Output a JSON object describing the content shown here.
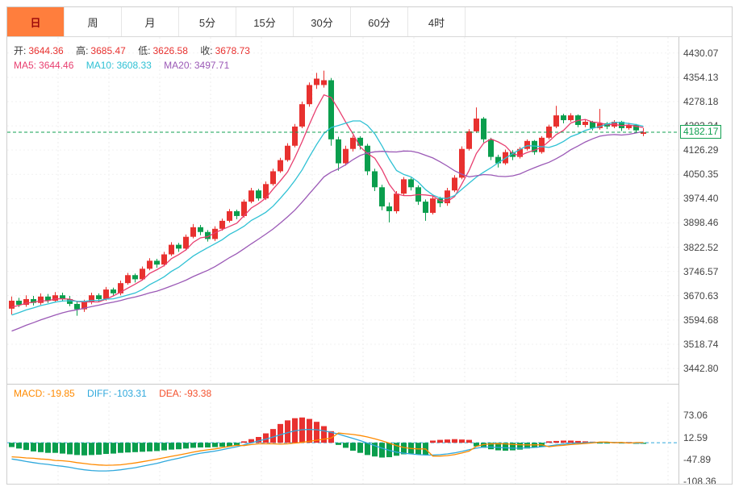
{
  "tabs": [
    {
      "label": "日",
      "active": true
    },
    {
      "label": "周",
      "active": false
    },
    {
      "label": "月",
      "active": false
    },
    {
      "label": "5分",
      "active": false
    },
    {
      "label": "15分",
      "active": false
    },
    {
      "label": "30分",
      "active": false
    },
    {
      "label": "60分",
      "active": false
    },
    {
      "label": "4时",
      "active": false
    }
  ],
  "ohlc_bar": {
    "open_label": "开:",
    "open": "3644.36",
    "high_label": "高:",
    "high": "3685.47",
    "low_label": "低:",
    "low": "3626.58",
    "close_label": "收:",
    "close": "3678.73"
  },
  "ma_bar": {
    "ma5_label": "MA5:",
    "ma5": "3644.46",
    "ma10_label": "MA10:",
    "ma10": "3608.33",
    "ma20_label": "MA20:",
    "ma20": "3497.71"
  },
  "macd_bar": {
    "macd_label": "MACD:",
    "macd": "-19.85",
    "diff_label": "DIFF:",
    "diff": "-103.31",
    "dea_label": "DEA:",
    "dea": "-93.38"
  },
  "price_tag": "4182.17",
  "colors": {
    "up": "#e8312f",
    "down": "#0a9e4d",
    "ma5": "#e83e6f",
    "ma10": "#2fc1d4",
    "ma20": "#9b59b6",
    "price_line": "#10a050",
    "macd_text": "#ff8a00",
    "diff": "#2fa8dc",
    "dea_text": "#f4502c",
    "dea_line": "#ff8a00",
    "tab_active_bg": "#ff7e3d",
    "tab_active_fg": "#9e0b0b",
    "grid": "#ececec"
  },
  "chart_data": [
    {
      "type": "candlestick",
      "name": "price",
      "ylim": [
        3395,
        4480
      ],
      "y_ticks": [
        "4430.07",
        "4354.13",
        "4278.18",
        "4202.24",
        "4126.29",
        "4050.35",
        "3974.40",
        "3898.46",
        "3822.52",
        "3746.57",
        "3670.63",
        "3594.68",
        "3518.74",
        "3442.80"
      ],
      "current_price": 4182.17,
      "legend": [
        "MA5",
        "MA10",
        "MA20"
      ],
      "ma_periods": [
        5,
        10,
        20
      ],
      "ohlc": [
        [
          3630,
          3668,
          3612,
          3655
        ],
        [
          3655,
          3664,
          3635,
          3642
        ],
        [
          3642,
          3672,
          3636,
          3660
        ],
        [
          3660,
          3670,
          3640,
          3648
        ],
        [
          3648,
          3678,
          3642,
          3668
        ],
        [
          3668,
          3676,
          3648,
          3655
        ],
        [
          3655,
          3682,
          3650,
          3672
        ],
        [
          3672,
          3680,
          3652,
          3660
        ],
        [
          3660,
          3670,
          3638,
          3645
        ],
        [
          3645,
          3655,
          3608,
          3628
        ],
        [
          3628,
          3658,
          3620,
          3650
        ],
        [
          3650,
          3680,
          3644,
          3672
        ],
        [
          3672,
          3678,
          3650,
          3660
        ],
        [
          3660,
          3698,
          3655,
          3690
        ],
        [
          3690,
          3696,
          3670,
          3678
        ],
        [
          3678,
          3718,
          3672,
          3710
        ],
        [
          3710,
          3742,
          3705,
          3735
        ],
        [
          3735,
          3740,
          3712,
          3722
        ],
        [
          3722,
          3762,
          3718,
          3755
        ],
        [
          3755,
          3788,
          3750,
          3780
        ],
        [
          3780,
          3786,
          3758,
          3768
        ],
        [
          3768,
          3808,
          3762,
          3800
        ],
        [
          3800,
          3838,
          3795,
          3830
        ],
        [
          3830,
          3836,
          3808,
          3818
        ],
        [
          3818,
          3862,
          3812,
          3855
        ],
        [
          3855,
          3895,
          3850,
          3885
        ],
        [
          3885,
          3892,
          3860,
          3870
        ],
        [
          3870,
          3876,
          3840,
          3848
        ],
        [
          3848,
          3888,
          3842,
          3880
        ],
        [
          3880,
          3912,
          3874,
          3905
        ],
        [
          3905,
          3942,
          3900,
          3935
        ],
        [
          3935,
          3940,
          3910,
          3920
        ],
        [
          3920,
          3972,
          3915,
          3965
        ],
        [
          3965,
          4008,
          3960,
          4000
        ],
        [
          4000,
          4005,
          3968,
          3975
        ],
        [
          3975,
          4028,
          3970,
          4020
        ],
        [
          4020,
          4068,
          4015,
          4060
        ],
        [
          4060,
          4102,
          4055,
          4095
        ],
        [
          4095,
          4148,
          4090,
          4140
        ],
        [
          4140,
          4208,
          4135,
          4200
        ],
        [
          4200,
          4278,
          4195,
          4270
        ],
        [
          4270,
          4338,
          4262,
          4330
        ],
        [
          4330,
          4368,
          4318,
          4350
        ],
        [
          4330,
          4375,
          4322,
          4345
        ],
        [
          4345,
          4352,
          4140,
          4160
        ],
        [
          4160,
          4168,
          4062,
          4085
        ],
        [
          4085,
          4140,
          4078,
          4130
        ],
        [
          4130,
          4172,
          4122,
          4165
        ],
        [
          4165,
          4170,
          4128,
          4140
        ],
        [
          4140,
          4146,
          4048,
          4060
        ],
        [
          4060,
          4068,
          3998,
          4010
        ],
        [
          4010,
          4018,
          3938,
          3950
        ],
        [
          3950,
          3962,
          3900,
          3935
        ],
        [
          3935,
          3998,
          3928,
          3990
        ],
        [
          3990,
          4042,
          3985,
          4035
        ],
        [
          4035,
          4040,
          4000,
          4010
        ],
        [
          4010,
          4016,
          3955,
          3965
        ],
        [
          3965,
          3972,
          3905,
          3930
        ],
        [
          3930,
          3982,
          3925,
          3975
        ],
        [
          3975,
          3980,
          3948,
          3960
        ],
        [
          3960,
          4008,
          3952,
          4000
        ],
        [
          4000,
          4048,
          3995,
          4040
        ],
        [
          4040,
          4138,
          4035,
          4130
        ],
        [
          4130,
          4192,
          4125,
          4185
        ],
        [
          4185,
          4260,
          4180,
          4225
        ],
        [
          4225,
          4230,
          4150,
          4160
        ],
        [
          4160,
          4165,
          4095,
          4105
        ],
        [
          4105,
          4112,
          4072,
          4085
        ],
        [
          4085,
          4128,
          4080,
          4120
        ],
        [
          4120,
          4126,
          4095,
          4105
        ],
        [
          4105,
          4136,
          4100,
          4130
        ],
        [
          4130,
          4160,
          4125,
          4155
        ],
        [
          4155,
          4158,
          4112,
          4120
        ],
        [
          4120,
          4170,
          4115,
          4165
        ],
        [
          4165,
          4206,
          4160,
          4200
        ],
        [
          4200,
          4265,
          4195,
          4235
        ],
        [
          4235,
          4240,
          4210,
          4220
        ],
        [
          4220,
          4242,
          4215,
          4235
        ],
        [
          4235,
          4238,
          4198,
          4205
        ],
        [
          4205,
          4222,
          4198,
          4215
        ],
        [
          4215,
          4218,
          4188,
          4195
        ],
        [
          4195,
          4255,
          4190,
          4210
        ],
        [
          4210,
          4214,
          4192,
          4200
        ],
        [
          4200,
          4220,
          4195,
          4215
        ],
        [
          4215,
          4218,
          4186,
          4195
        ],
        [
          4195,
          4212,
          4190,
          4205
        ],
        [
          4205,
          4208,
          4180,
          4188
        ],
        [
          4178,
          4195,
          4170,
          4182.17
        ]
      ]
    },
    {
      "type": "bar",
      "name": "macd",
      "ylim": [
        -118,
        112
      ],
      "y_ticks": [
        "73.06",
        "12.59",
        "-47.89",
        "-108.36"
      ],
      "zero_line_dashed": true,
      "hist": [
        -12,
        -16,
        -20,
        -24,
        -26,
        -28,
        -28,
        -30,
        -32,
        -34,
        -35,
        -34,
        -33,
        -31,
        -30,
        -28,
        -27,
        -26,
        -25,
        -24,
        -23,
        -21,
        -19,
        -18,
        -16,
        -14,
        -13,
        -13,
        -12,
        -11,
        -10,
        -8,
        4,
        10,
        16,
        26,
        38,
        52,
        62,
        68,
        70,
        66,
        58,
        46,
        32,
        -6,
        -14,
        -22,
        -28,
        -34,
        -38,
        -41,
        -40,
        -36,
        -32,
        -30,
        -32,
        -34,
        6,
        8,
        9,
        10,
        9,
        8,
        -10,
        -14,
        -18,
        -21,
        -22,
        -21,
        -19,
        -16,
        -14,
        -11,
        4,
        5,
        6,
        6,
        5,
        4,
        3,
        -2,
        -2,
        2,
        -2,
        2,
        -3,
        -3
      ],
      "diff": [
        -45,
        -48,
        -52,
        -55,
        -58,
        -60,
        -63,
        -65,
        -68,
        -72,
        -75,
        -77,
        -78,
        -78,
        -77,
        -75,
        -72,
        -69,
        -65,
        -61,
        -57,
        -52,
        -47,
        -43,
        -38,
        -33,
        -29,
        -26,
        -23,
        -19,
        -15,
        -11,
        -6,
        0,
        5,
        10,
        16,
        22,
        28,
        33,
        36,
        37,
        36,
        33,
        29,
        24,
        18,
        12,
        6,
        -1,
        -8,
        -15,
        -21,
        -26,
        -29,
        -31,
        -33,
        -34,
        -34,
        -33,
        -31,
        -28,
        -24,
        -19,
        -15,
        -12,
        -12,
        -13,
        -14,
        -15,
        -15,
        -14,
        -13,
        -11,
        -9,
        -6,
        -4,
        -2,
        -1,
        0,
        1,
        1,
        1,
        1,
        0,
        0,
        -1,
        -1
      ]
    }
  ]
}
